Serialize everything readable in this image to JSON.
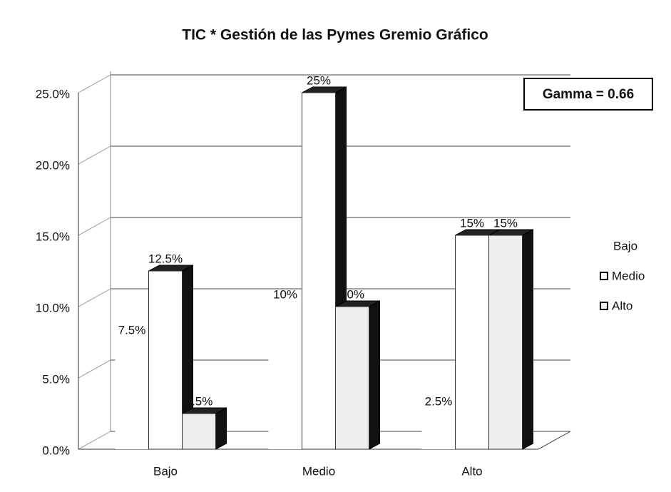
{
  "chart_data": {
    "type": "bar3d",
    "title": "TIC * Gestión de las Pymes Gremio Gráfico",
    "categories": [
      "Bajo",
      "Medio",
      "Alto"
    ],
    "series": [
      {
        "name": "Bajo",
        "color": "#ffffff",
        "values": [
          7.5,
          10,
          2.5
        ],
        "value_labels": [
          "7.5%",
          "10%",
          "2.5%"
        ]
      },
      {
        "name": "Medio",
        "color": "#ffffff",
        "values": [
          12.5,
          25,
          15
        ],
        "value_labels": [
          "12.5%",
          "25%",
          "15%"
        ]
      },
      {
        "name": "Alto",
        "color": "#eeeeee",
        "values": [
          2.5,
          10,
          15
        ],
        "value_labels": [
          "2.5%",
          "10%",
          "15%"
        ]
      }
    ],
    "ylim": [
      0,
      25
    ],
    "yticks": [
      {
        "value": 0,
        "label": "0.0%"
      },
      {
        "value": 5,
        "label": "5.0%"
      },
      {
        "value": 10,
        "label": "10.0%"
      },
      {
        "value": 15,
        "label": "15.0%"
      },
      {
        "value": 20,
        "label": "20.0%"
      },
      {
        "value": 25,
        "label": "25.0%"
      }
    ],
    "grid": true,
    "annotation": "Gamma = 0.66"
  }
}
